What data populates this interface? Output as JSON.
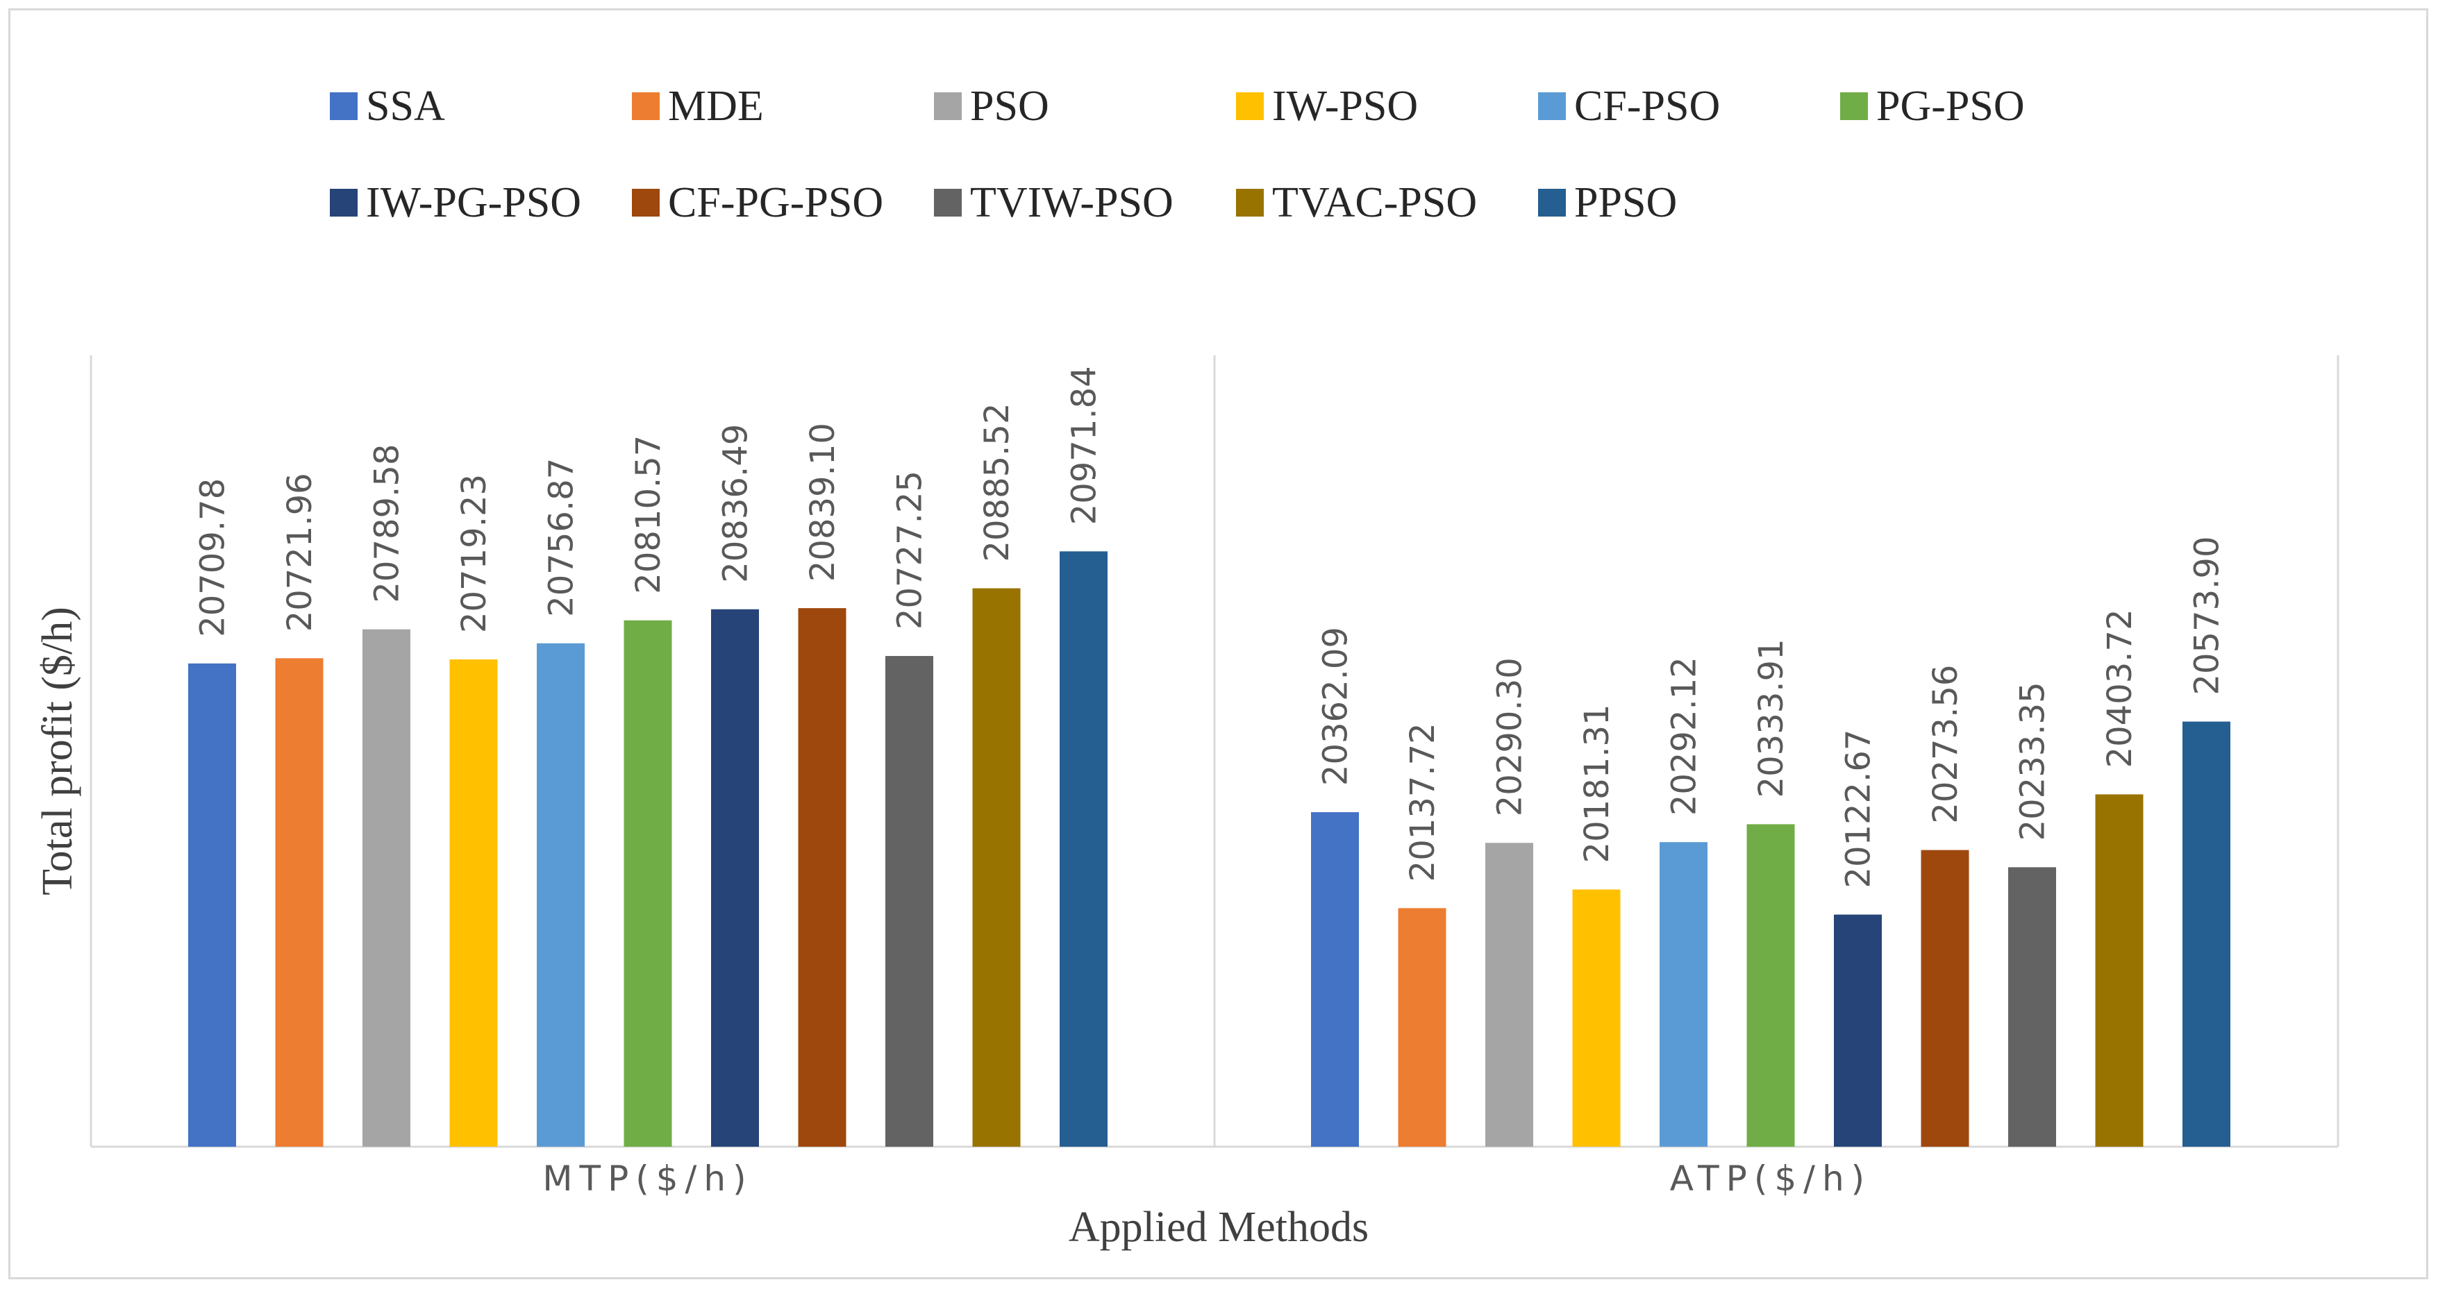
{
  "chart_data": {
    "type": "bar",
    "ylabel": "Total profit ($/h)",
    "xlabel": "Applied Methods",
    "categories": [
      "MTP($/h)",
      "ATP($/h)"
    ],
    "ylim": [
      19580,
      21430
    ],
    "grid": false,
    "legend_position": "top",
    "series": [
      {
        "name": "SSA",
        "color": "#4472C4",
        "values": [
          20709.78,
          20362.09
        ]
      },
      {
        "name": "MDE",
        "color": "#ED7D31",
        "values": [
          20721.96,
          20137.72
        ]
      },
      {
        "name": "PSO",
        "color": "#A5A5A5",
        "values": [
          20789.58,
          20290.3
        ]
      },
      {
        "name": "IW-PSO",
        "color": "#FFC000",
        "values": [
          20719.23,
          20181.31
        ]
      },
      {
        "name": "CF-PSO",
        "color": "#5B9BD5",
        "values": [
          20756.87,
          20292.12
        ]
      },
      {
        "name": "PG-PSO",
        "color": "#70AD47",
        "values": [
          20810.57,
          20333.91
        ]
      },
      {
        "name": "IW-PG-PSO",
        "color": "#264478",
        "values": [
          20836.49,
          20122.67
        ]
      },
      {
        "name": "CF-PG-PSO",
        "color": "#9E480E",
        "values": [
          20839.1,
          20273.56
        ]
      },
      {
        "name": "TVIW-PSO",
        "color": "#636363",
        "values": [
          20727.25,
          20233.35
        ]
      },
      {
        "name": "TVAC-PSO",
        "color": "#997300",
        "values": [
          20885.52,
          20403.72
        ]
      },
      {
        "name": "PPSO",
        "color": "#255E91",
        "values": [
          20971.84,
          20573.9
        ]
      }
    ]
  }
}
